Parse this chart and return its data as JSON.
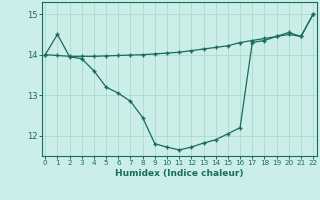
{
  "xlabel": "Humidex (Indice chaleur)",
  "bg_color": "#cceee8",
  "line_color": "#1a6b5e",
  "grid_color": "#aaddcc",
  "x_data": [
    0,
    1,
    2,
    3,
    4,
    5,
    6,
    7,
    8,
    9,
    10,
    11,
    12,
    13,
    14,
    15,
    16,
    17,
    18,
    19,
    20,
    21,
    22
  ],
  "y_curve": [
    14.0,
    14.5,
    13.95,
    13.9,
    13.6,
    13.2,
    13.05,
    12.85,
    12.45,
    11.8,
    11.72,
    11.65,
    11.72,
    11.82,
    11.9,
    12.05,
    12.2,
    14.3,
    14.35,
    14.45,
    14.55,
    14.45,
    15.0
  ],
  "y_line": [
    14.0,
    13.98,
    13.96,
    13.96,
    13.96,
    13.97,
    13.98,
    13.99,
    14.0,
    14.02,
    14.04,
    14.06,
    14.1,
    14.14,
    14.18,
    14.22,
    14.3,
    14.35,
    14.4,
    14.45,
    14.5,
    14.45,
    15.0
  ],
  "ylim": [
    11.5,
    15.3
  ],
  "xlim": [
    -0.3,
    22.3
  ],
  "yticks": [
    12,
    13,
    14,
    15
  ],
  "xticks": [
    0,
    1,
    2,
    3,
    4,
    5,
    6,
    7,
    8,
    9,
    10,
    11,
    12,
    13,
    14,
    15,
    16,
    17,
    18,
    19,
    20,
    21,
    22
  ]
}
